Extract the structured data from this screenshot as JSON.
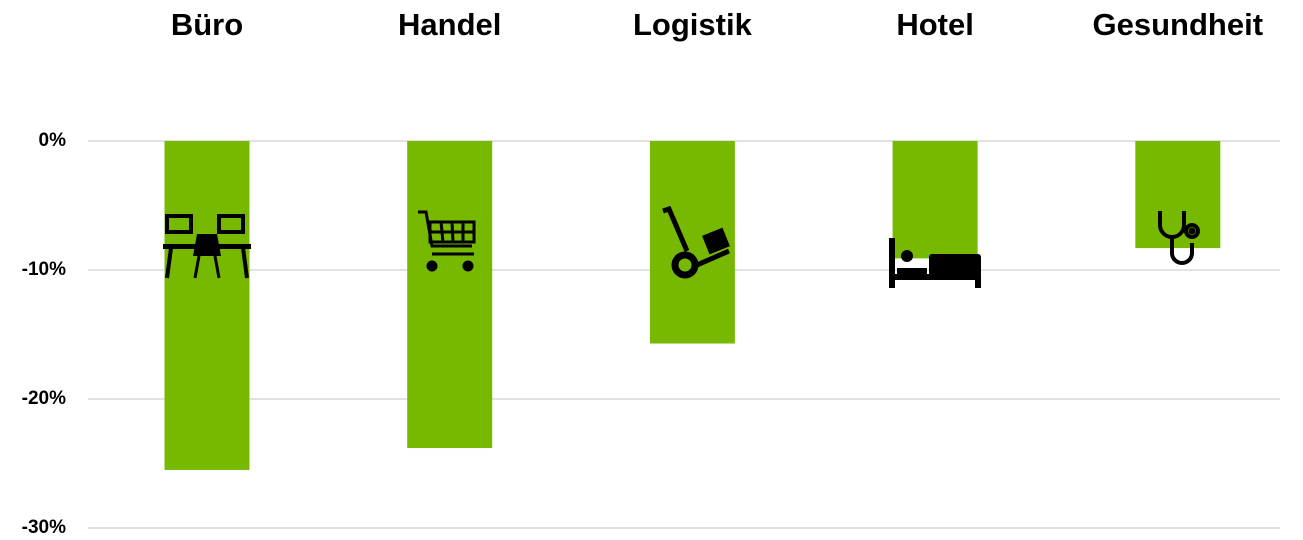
{
  "chart_data": {
    "type": "bar",
    "categories": [
      "Büro",
      "Handel",
      "Logistik",
      "Hotel",
      "Gesundheit"
    ],
    "values": [
      -25.5,
      -23.8,
      -15.7,
      -9.1,
      -8.3
    ],
    "color": "#77b900",
    "ylim": [
      -30,
      0
    ],
    "yticks": [
      {
        "value": 0,
        "label": "0%"
      },
      {
        "value": -10,
        "label": "-10%"
      },
      {
        "value": -20,
        "label": "-20%"
      },
      {
        "value": -30,
        "label": "-30%"
      }
    ],
    "grid": true
  }
}
